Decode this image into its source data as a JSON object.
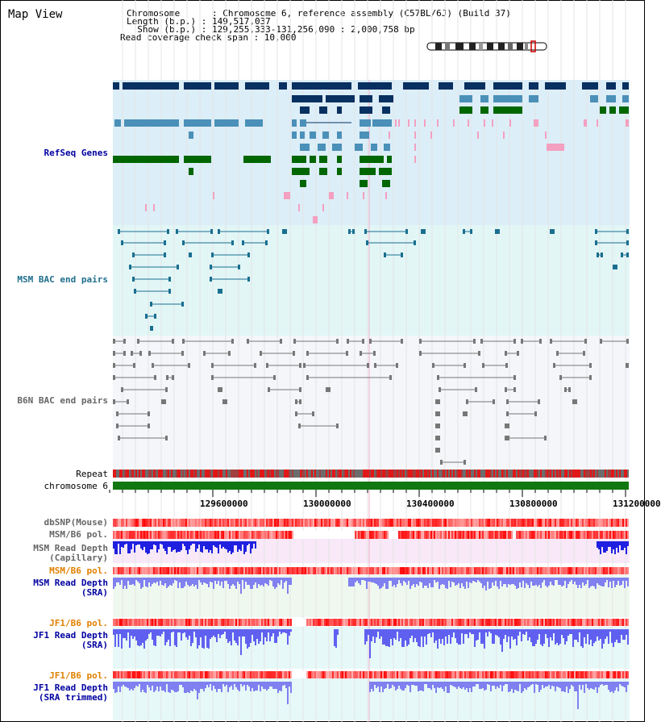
{
  "title": "Map View",
  "header": {
    "chromosome": "Chromosome      : Chromosome 6, reference assembly (C57BL/6J) (Build 37)",
    "length": "Length (b.p.) : 149,517,037",
    "show": "  Show (b.p.) : 129,255,333-131,256,090 : 2,000,758 bp",
    "coverage": "Read coverage check span : 10,000"
  },
  "tracks": {
    "refseq": "RefSeq Genes",
    "msm_bac": "MSM BAC end pairs",
    "b6n_bac": "B6N BAC end pairs",
    "repeat": "Repeat",
    "chrom": "chromosome 6",
    "dbsnp": "dbSNP(Mouse)",
    "msm_b6_pol": "MSM/B6 pol.",
    "msm_depth_cap": "MSM Read Depth\n(Capillary)",
    "msm_b6_pol2": "MSM/B6 pol.",
    "msm_depth_sra": "MSM Read Depth\n(SRA)",
    "jf1_b6_pol": "JF1/B6 pol.",
    "jf1_depth_sra": "JF1 Read Depth\n(SRA)",
    "jf1_b6_pol2": "JF1/B6 pol.",
    "jf1_depth_trim": "JF1 Read Depth\n(SRA trimmed)"
  },
  "axis_ticks": [
    "129600000",
    "130000000",
    "130400000",
    "130800000",
    "131200000"
  ],
  "colors": {
    "refseq_bg": "#dceef8",
    "msm_bac_bg": "#e2f6f6",
    "b6n_bac_bg": "#f4f6fa",
    "navy": "#083060",
    "steel": "#4a90b8",
    "green": "#006600",
    "pink": "#f4a0c0",
    "teal": "#1a6f90",
    "gray": "#777777",
    "label_blue": "#0000a0",
    "label_teal": "#1f6e8c",
    "label_gray": "#666666",
    "label_orange": "#e08000"
  }
}
